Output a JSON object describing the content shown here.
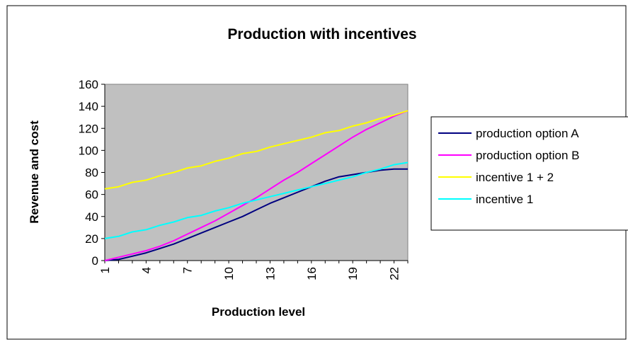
{
  "chart_data": {
    "type": "line",
    "title": "Production with incentives",
    "xlabel": "Production level",
    "ylabel": "Revenue and cost",
    "x": [
      1,
      2,
      3,
      4,
      5,
      6,
      7,
      8,
      9,
      10,
      11,
      12,
      13,
      14,
      15,
      16,
      17,
      18,
      19,
      20,
      21,
      22,
      23
    ],
    "x_tick_labels": [
      "1",
      "4",
      "7",
      "10",
      "13",
      "16",
      "19",
      "22"
    ],
    "y_ticks": [
      0,
      20,
      40,
      60,
      80,
      100,
      120,
      140,
      160
    ],
    "ylim": [
      0,
      160
    ],
    "grid": false,
    "legend_position": "right",
    "plot_background": "#c0c0c0",
    "series": [
      {
        "name": "production option A",
        "color": "#000080",
        "values": [
          0,
          1,
          4,
          7,
          11,
          15,
          20,
          25,
          30,
          35,
          40,
          46,
          52,
          57,
          62,
          67,
          72,
          76,
          78,
          80,
          82,
          83,
          83
        ]
      },
      {
        "name": "production option B",
        "color": "#ff00ff",
        "values": [
          0,
          3,
          6,
          9,
          13,
          18,
          24,
          30,
          36,
          43,
          50,
          57,
          65,
          73,
          80,
          88,
          96,
          104,
          112,
          119,
          125,
          131,
          136
        ]
      },
      {
        "name": "incentive 1 + 2",
        "color": "#ffff00",
        "values": [
          65,
          67,
          71,
          73,
          77,
          80,
          84,
          86,
          90,
          93,
          97,
          99,
          103,
          106,
          109,
          112,
          116,
          118,
          122,
          125,
          129,
          132,
          136
        ]
      },
      {
        "name": "incentive 1",
        "color": "#00ffff",
        "values": [
          20,
          22,
          26,
          28,
          32,
          35,
          39,
          41,
          45,
          48,
          52,
          55,
          58,
          61,
          64,
          67,
          70,
          73,
          76,
          80,
          83,
          87,
          89
        ]
      }
    ]
  }
}
